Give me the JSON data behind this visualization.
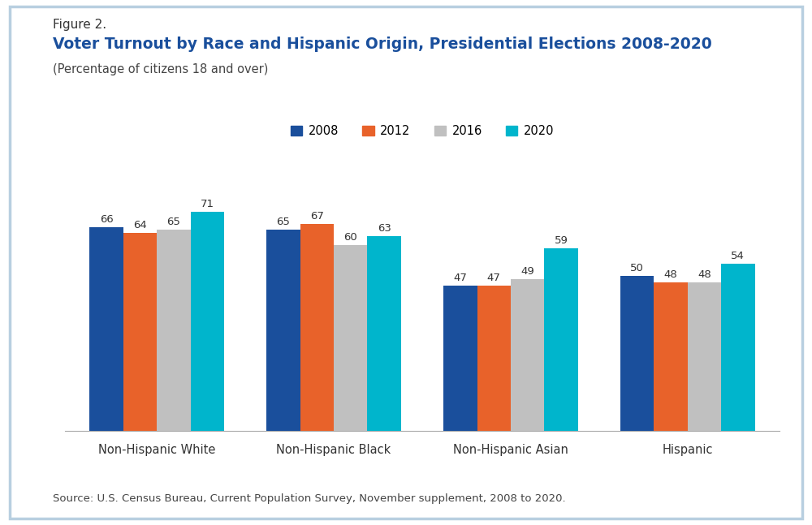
{
  "title_line1": "Figure 2.",
  "title_line2": "Voter Turnout by Race and Hispanic Origin, Presidential Elections 2008-2020",
  "subtitle": "(Percentage of citizens 18 and over)",
  "source": "Source: U.S. Census Bureau, Current Population Survey, November supplement, 2008 to 2020.",
  "categories": [
    "Non-Hispanic White",
    "Non-Hispanic Black",
    "Non-Hispanic Asian",
    "Hispanic"
  ],
  "years": [
    "2008",
    "2012",
    "2016",
    "2020"
  ],
  "values": {
    "Non-Hispanic White": [
      66,
      64,
      65,
      71
    ],
    "Non-Hispanic Black": [
      65,
      67,
      60,
      63
    ],
    "Non-Hispanic Asian": [
      47,
      47,
      49,
      59
    ],
    "Hispanic": [
      50,
      48,
      48,
      54
    ]
  },
  "bar_colors": [
    "#1a4f9c",
    "#e8622a",
    "#c0c0c0",
    "#00b5cc"
  ],
  "background_color": "#ffffff",
  "border_color": "#b8cfe0",
  "title_color": "#1a4f9c",
  "title_line1_color": "#333333",
  "subtitle_color": "#444444",
  "source_color": "#444444",
  "bar_width": 0.19,
  "ylim": [
    0,
    80
  ],
  "legend_labels": [
    "2008",
    "2012",
    "2016",
    "2020"
  ],
  "value_fontsize": 9.5,
  "label_fontsize": 10.5,
  "legend_fontsize": 10.5,
  "title1_fontsize": 11,
  "title2_fontsize": 13.5,
  "subtitle_fontsize": 10.5,
  "source_fontsize": 9.5
}
